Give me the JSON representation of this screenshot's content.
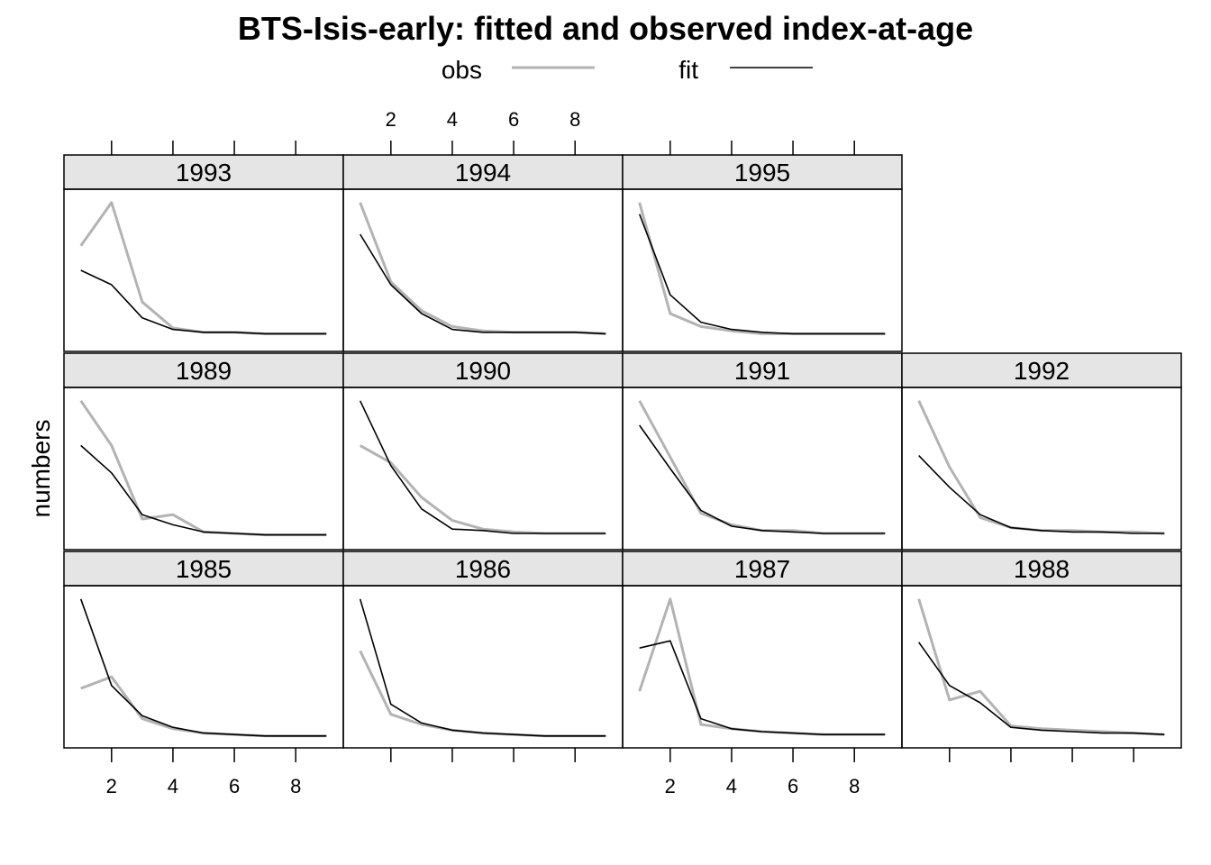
{
  "chart_data": {
    "type": "line",
    "title": "BTS-Isis-early: fitted and observed index-at-age",
    "ylabel": "numbers",
    "xlabel": "",
    "x": [
      1,
      2,
      3,
      4,
      5,
      6,
      7,
      8,
      9
    ],
    "xlim": [
      0.45,
      9.55
    ],
    "xticks": [
      2,
      4,
      6,
      8
    ],
    "legend": {
      "placement": "top",
      "entries": [
        {
          "label": "obs",
          "color": "#b3b3b3",
          "width": 3
        },
        {
          "label": "fit",
          "color": "#000000",
          "width": 1.6
        }
      ]
    },
    "layout": {
      "columns": 4,
      "rows": 3
    },
    "colors": {
      "obs": "#b3b3b3",
      "fit": "#000000",
      "strip": "#e5e5e5"
    },
    "panels": [
      {
        "label": "1985",
        "ylim": [
          0,
          1
        ],
        "obs": [
          0.35,
          0.43,
          0.14,
          0.07,
          0.04,
          0.03,
          0.02,
          0.02,
          0.02
        ],
        "fit": [
          0.97,
          0.37,
          0.16,
          0.08,
          0.04,
          0.03,
          0.02,
          0.02,
          0.02
        ]
      },
      {
        "label": "1986",
        "ylim": [
          0,
          1
        ],
        "obs": [
          0.61,
          0.17,
          0.1,
          0.06,
          0.04,
          0.03,
          0.02,
          0.02,
          0.02
        ],
        "fit": [
          0.97,
          0.24,
          0.11,
          0.06,
          0.04,
          0.03,
          0.02,
          0.02,
          0.02
        ]
      },
      {
        "label": "1987",
        "ylim": [
          0,
          1
        ],
        "obs": [
          0.33,
          0.97,
          0.1,
          0.07,
          0.05,
          0.04,
          0.03,
          0.03,
          0.03
        ],
        "fit": [
          0.63,
          0.68,
          0.14,
          0.07,
          0.05,
          0.04,
          0.03,
          0.03,
          0.03
        ]
      },
      {
        "label": "1988",
        "ylim": [
          0,
          1
        ],
        "obs": [
          0.97,
          0.27,
          0.33,
          0.09,
          0.07,
          0.06,
          0.05,
          0.04,
          0.03
        ],
        "fit": [
          0.67,
          0.37,
          0.25,
          0.08,
          0.06,
          0.05,
          0.04,
          0.04,
          0.03
        ]
      },
      {
        "label": "1989",
        "ylim": [
          0,
          1
        ],
        "obs": [
          0.97,
          0.66,
          0.15,
          0.18,
          0.06,
          0.05,
          0.04,
          0.04,
          0.04
        ],
        "fit": [
          0.66,
          0.47,
          0.18,
          0.11,
          0.06,
          0.05,
          0.04,
          0.04,
          0.04
        ]
      },
      {
        "label": "1990",
        "ylim": [
          0,
          1
        ],
        "obs": [
          0.66,
          0.54,
          0.3,
          0.14,
          0.08,
          0.06,
          0.05,
          0.05,
          0.05
        ],
        "fit": [
          0.97,
          0.52,
          0.22,
          0.08,
          0.07,
          0.05,
          0.05,
          0.05,
          0.05
        ]
      },
      {
        "label": "1991",
        "ylim": [
          0,
          1
        ],
        "obs": [
          0.97,
          0.58,
          0.19,
          0.11,
          0.07,
          0.07,
          0.05,
          0.05,
          0.05
        ],
        "fit": [
          0.8,
          0.5,
          0.21,
          0.1,
          0.07,
          0.06,
          0.05,
          0.05,
          0.05
        ]
      },
      {
        "label": "1992",
        "ylim": [
          0,
          1
        ],
        "obs": [
          0.97,
          0.51,
          0.16,
          0.09,
          0.07,
          0.07,
          0.06,
          0.06,
          0.05
        ],
        "fit": [
          0.59,
          0.37,
          0.18,
          0.09,
          0.07,
          0.06,
          0.06,
          0.05,
          0.05
        ]
      },
      {
        "label": "1993",
        "ylim": [
          0,
          1
        ],
        "obs": [
          0.67,
          0.97,
          0.28,
          0.1,
          0.07,
          0.07,
          0.06,
          0.06,
          0.06
        ],
        "fit": [
          0.5,
          0.4,
          0.17,
          0.09,
          0.07,
          0.07,
          0.06,
          0.06,
          0.06
        ]
      },
      {
        "label": "1994",
        "ylim": [
          0,
          1
        ],
        "obs": [
          0.97,
          0.42,
          0.22,
          0.11,
          0.08,
          0.07,
          0.07,
          0.07,
          0.06
        ],
        "fit": [
          0.75,
          0.4,
          0.2,
          0.09,
          0.07,
          0.07,
          0.07,
          0.07,
          0.06
        ]
      },
      {
        "label": "1995",
        "ylim": [
          0,
          1
        ],
        "obs": [
          0.97,
          0.2,
          0.11,
          0.08,
          0.06,
          0.06,
          0.06,
          0.06,
          0.06
        ],
        "fit": [
          0.89,
          0.33,
          0.14,
          0.09,
          0.07,
          0.06,
          0.06,
          0.06,
          0.06
        ]
      }
    ]
  }
}
